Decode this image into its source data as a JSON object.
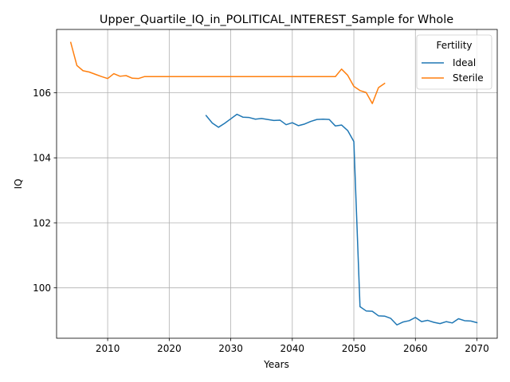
{
  "chart_data": {
    "type": "line",
    "title": "Upper_Quartile_IQ_in_POLITICAL_INTEREST_Sample for Whole",
    "xlabel": "Years",
    "ylabel": "IQ",
    "xlim": [
      2001.7,
      2073.3
    ],
    "ylim": [
      98.45,
      107.95
    ],
    "xticks": [
      2010,
      2020,
      2030,
      2040,
      2050,
      2060,
      2070
    ],
    "yticks": [
      100,
      102,
      104,
      106
    ],
    "grid": true,
    "legend": {
      "title": "Fertility",
      "placement": "top-right"
    },
    "series": [
      {
        "name": "Ideal",
        "color": "#1f77b4",
        "points": [
          [
            2026,
            105.3
          ],
          [
            2027,
            105.07
          ],
          [
            2028,
            104.94
          ],
          [
            2029,
            105.06
          ],
          [
            2030,
            105.2
          ],
          [
            2031,
            105.34
          ],
          [
            2032,
            105.25
          ],
          [
            2033,
            105.24
          ],
          [
            2034,
            105.19
          ],
          [
            2035,
            105.21
          ],
          [
            2036,
            105.18
          ],
          [
            2037,
            105.15
          ],
          [
            2038,
            105.16
          ],
          [
            2039,
            105.02
          ],
          [
            2040,
            105.08
          ],
          [
            2041,
            104.99
          ],
          [
            2042,
            105.04
          ],
          [
            2043,
            105.12
          ],
          [
            2044,
            105.18
          ],
          [
            2045,
            105.19
          ],
          [
            2046,
            105.18
          ],
          [
            2047,
            104.98
          ],
          [
            2048,
            105.01
          ],
          [
            2049,
            104.84
          ],
          [
            2050,
            104.5
          ],
          [
            2051,
            99.42
          ],
          [
            2052,
            99.29
          ],
          [
            2053,
            99.28
          ],
          [
            2054,
            99.14
          ],
          [
            2055,
            99.13
          ],
          [
            2056,
            99.06
          ],
          [
            2057,
            98.86
          ],
          [
            2058,
            98.95
          ],
          [
            2059,
            98.99
          ],
          [
            2060,
            99.09
          ],
          [
            2061,
            98.96
          ],
          [
            2062,
            99.0
          ],
          [
            2063,
            98.94
          ],
          [
            2064,
            98.9
          ],
          [
            2065,
            98.96
          ],
          [
            2066,
            98.92
          ],
          [
            2067,
            99.05
          ],
          [
            2068,
            98.99
          ],
          [
            2069,
            98.98
          ],
          [
            2070,
            98.93
          ]
        ]
      },
      {
        "name": "Sterile",
        "color": "#ff7f0e",
        "points": [
          [
            2004,
            107.55
          ],
          [
            2005,
            106.84
          ],
          [
            2006,
            106.68
          ],
          [
            2007,
            106.64
          ],
          [
            2008,
            106.57
          ],
          [
            2009,
            106.5
          ],
          [
            2010,
            106.44
          ],
          [
            2011,
            106.59
          ],
          [
            2012,
            106.51
          ],
          [
            2013,
            106.53
          ],
          [
            2014,
            106.45
          ],
          [
            2015,
            106.44
          ],
          [
            2016,
            106.5
          ],
          [
            2017,
            106.5
          ],
          [
            2018,
            106.5
          ],
          [
            2019,
            106.5
          ],
          [
            2020,
            106.5
          ],
          [
            2021,
            106.5
          ],
          [
            2022,
            106.5
          ],
          [
            2023,
            106.5
          ],
          [
            2024,
            106.5
          ],
          [
            2025,
            106.5
          ],
          [
            2026,
            106.5
          ],
          [
            2027,
            106.5
          ],
          [
            2028,
            106.5
          ],
          [
            2029,
            106.5
          ],
          [
            2030,
            106.5
          ],
          [
            2031,
            106.5
          ],
          [
            2032,
            106.5
          ],
          [
            2033,
            106.5
          ],
          [
            2034,
            106.5
          ],
          [
            2035,
            106.5
          ],
          [
            2036,
            106.5
          ],
          [
            2037,
            106.5
          ],
          [
            2038,
            106.5
          ],
          [
            2039,
            106.5
          ],
          [
            2040,
            106.5
          ],
          [
            2041,
            106.5
          ],
          [
            2042,
            106.5
          ],
          [
            2043,
            106.5
          ],
          [
            2044,
            106.5
          ],
          [
            2045,
            106.5
          ],
          [
            2046,
            106.5
          ],
          [
            2047,
            106.5
          ],
          [
            2048,
            106.73
          ],
          [
            2049,
            106.54
          ],
          [
            2050,
            106.2
          ],
          [
            2051,
            106.07
          ],
          [
            2052,
            106.01
          ],
          [
            2053,
            105.67
          ],
          [
            2054,
            106.16
          ],
          [
            2055,
            106.29
          ]
        ]
      }
    ]
  }
}
